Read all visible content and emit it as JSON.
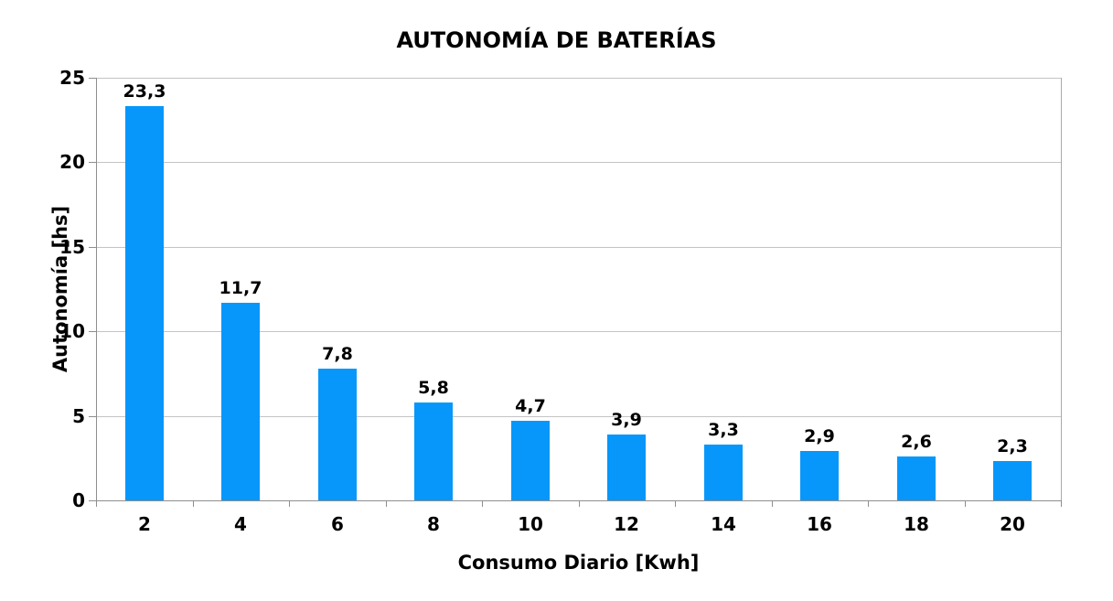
{
  "chart_data": {
    "type": "bar",
    "title": "AUTONOMÍA DE BATERÍAS",
    "xlabel": "Consumo Diario [Kwh]",
    "ylabel": "Autonomía [hs]",
    "categories": [
      "2",
      "4",
      "6",
      "8",
      "10",
      "12",
      "14",
      "16",
      "18",
      "20"
    ],
    "values": [
      23.3,
      11.7,
      7.8,
      5.8,
      4.7,
      3.9,
      3.3,
      2.9,
      2.6,
      2.3
    ],
    "value_labels": [
      "23,3",
      "11,7",
      "7,8",
      "5,8",
      "4,7",
      "3,9",
      "3,3",
      "2,9",
      "2,6",
      "2,3"
    ],
    "ylim": [
      0,
      25
    ],
    "yticks": [
      0,
      5,
      10,
      15,
      20,
      25
    ],
    "grid": "horizontal-major",
    "legend": "none",
    "decimal_separator": ",",
    "colors": {
      "bar": "#0797FB",
      "gridline": "#C4C4C4",
      "axis": "#8E8E8E",
      "plot_border": "#ABABAB",
      "text": "#000000",
      "background": "#FFFFFF"
    }
  }
}
